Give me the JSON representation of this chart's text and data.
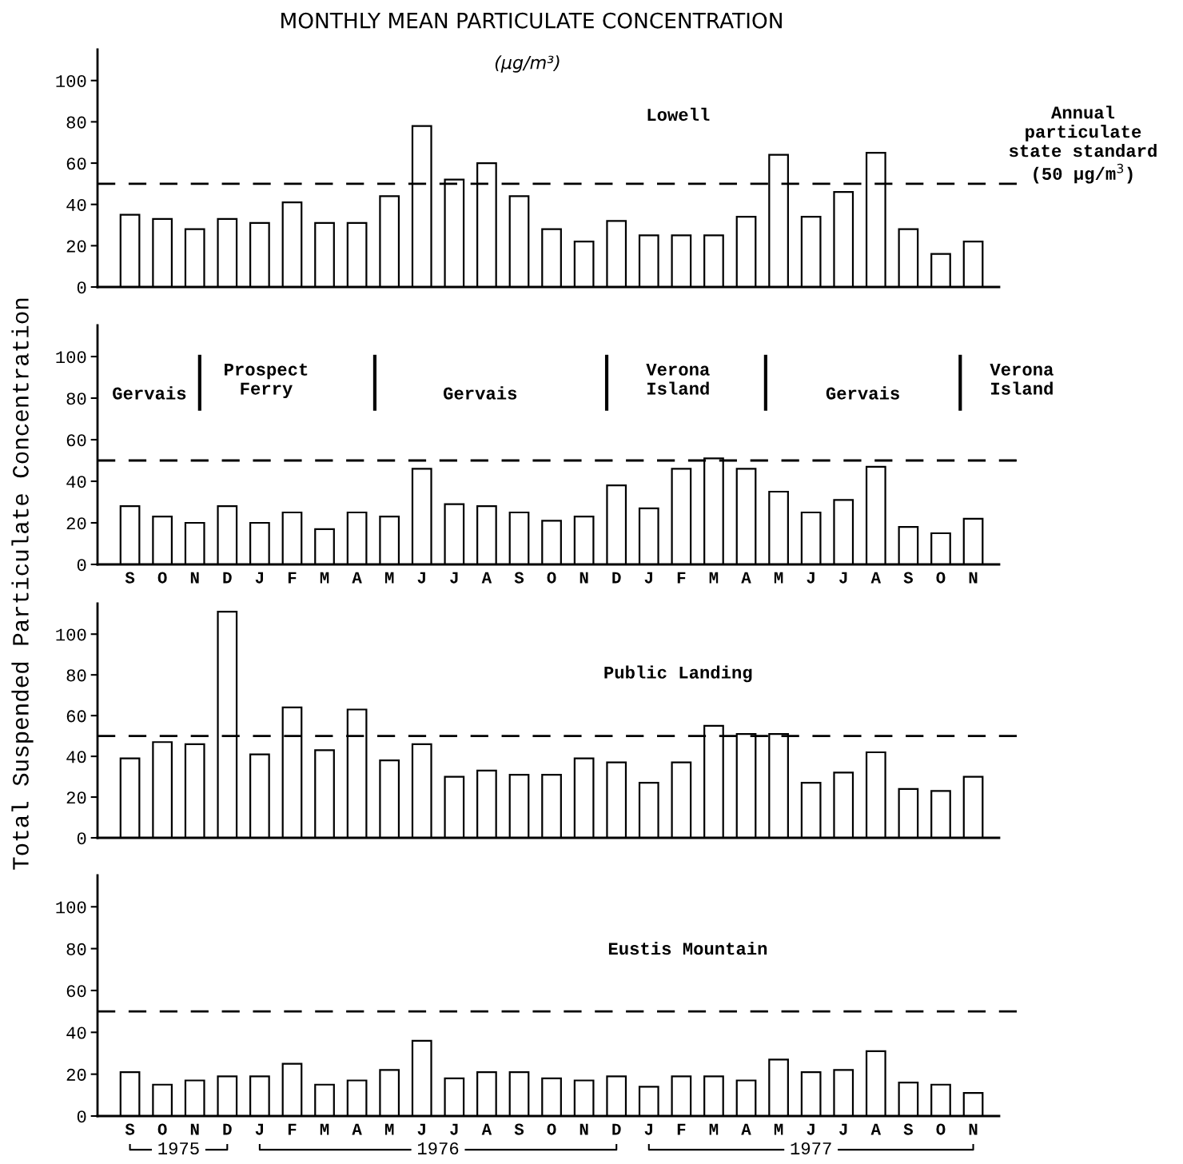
{
  "chart_data": [
    {
      "type": "bar",
      "title": "MONTHLY MEAN PARTICULATE CONCENTRATION",
      "subtitle": "(µg/m³)",
      "tick_labels": "y",
      "color": "#ffffff",
      "categories": [
        null,
        null,
        null,
        null,
        null,
        null,
        null,
        null,
        null,
        null,
        null,
        null,
        null,
        null,
        null,
        null,
        null,
        null,
        null,
        null,
        null,
        null,
        null,
        null,
        null,
        null,
        null
      ],
      "values": [
        35,
        33,
        28,
        33,
        31,
        41,
        31,
        31,
        44,
        78,
        52,
        60,
        44,
        28,
        22,
        32,
        25,
        25,
        25,
        34,
        64,
        34,
        46,
        65,
        28,
        16,
        22
      ],
      "ylim": [
        0,
        115
      ],
      "yticks": [
        0,
        20,
        40,
        60,
        80,
        100
      ],
      "ref_lines": [
        {
          "axis": "y",
          "value": 50,
          "label": "Annual\nparticulate\nstate standard\n(50 µg/m$^{3}$)",
          "line_style": "dashed"
        }
      ],
      "annotations": [
        "Lowell"
      ]
    },
    {
      "type": "bar",
      "ylabel": "Total Suspended Particulate Concentration",
      "color": "#ffffff",
      "categories": [
        "S",
        "O",
        "N",
        "D",
        "J",
        "F",
        "M",
        "A",
        "M",
        "J",
        "J",
        "A",
        "S",
        "O",
        "N",
        "D",
        "J",
        "F",
        "M",
        "A",
        "M",
        "J",
        "J",
        "A",
        "S",
        "O",
        "N"
      ],
      "values": [
        28,
        23,
        20,
        28,
        20,
        25,
        17,
        25,
        23,
        46,
        29,
        28,
        25,
        21,
        23,
        38,
        27,
        46,
        51,
        46,
        35,
        25,
        31,
        47,
        18,
        15,
        22
      ],
      "ylim": [
        0,
        115
      ],
      "yticks": [
        0,
        20,
        40,
        60,
        80,
        100
      ],
      "ref_lines": [
        {
          "axis": "y",
          "value": 50,
          "label": null,
          "line_style": "dashed"
        }
      ],
      "annotations": [
        "Gervais",
        "Prospect\nFerry",
        "Gervais",
        "Verona\nIsland",
        "Gervais",
        "Verona\nIsland"
      ]
    },
    {
      "type": "bar",
      "tick_labels": "y",
      "color": "#ffffff",
      "categories": [
        null,
        null,
        null,
        null,
        null,
        null,
        null,
        null,
        null,
        null,
        null,
        null,
        null,
        null,
        null,
        null,
        null,
        null,
        null,
        null,
        null,
        null,
        null,
        null,
        null,
        null,
        null
      ],
      "values": [
        39,
        47,
        46,
        111,
        41,
        64,
        43,
        63,
        38,
        46,
        30,
        33,
        31,
        31,
        39,
        37,
        27,
        37,
        55,
        51,
        51,
        27,
        32,
        42,
        24,
        23,
        30
      ],
      "ylim": [
        0,
        115
      ],
      "yticks": [
        0,
        20,
        40,
        60,
        80,
        100
      ],
      "ref_lines": [
        {
          "axis": "y",
          "value": 50,
          "label": null,
          "line_style": "dashed"
        }
      ],
      "annotations": [
        "Public Landing"
      ]
    },
    {
      "type": "bar",
      "color": "#ffffff",
      "categories": [
        "S",
        "O",
        "N",
        "D",
        "J",
        "F",
        "M",
        "A",
        "M",
        "J",
        "J",
        "A",
        "S",
        "O",
        "N",
        "D",
        "J",
        "F",
        "M",
        "A",
        "M",
        "J",
        "J",
        "A",
        "S",
        "O",
        "N"
      ],
      "values": [
        21,
        15,
        17,
        19,
        19,
        25,
        15,
        17,
        22,
        36,
        18,
        21,
        21,
        18,
        17,
        19,
        14,
        19,
        19,
        17,
        27,
        21,
        22,
        31,
        16,
        15,
        11
      ],
      "ylim": [
        0,
        115
      ],
      "yticks": [
        0,
        20,
        40,
        60,
        80,
        100
      ],
      "ref_lines": [
        {
          "axis": "y",
          "value": 50,
          "label": null,
          "line_style": "dashed"
        }
      ],
      "annotations": [
        "Eustis Mountain",
        "1975",
        "1976",
        "1977"
      ]
    }
  ]
}
